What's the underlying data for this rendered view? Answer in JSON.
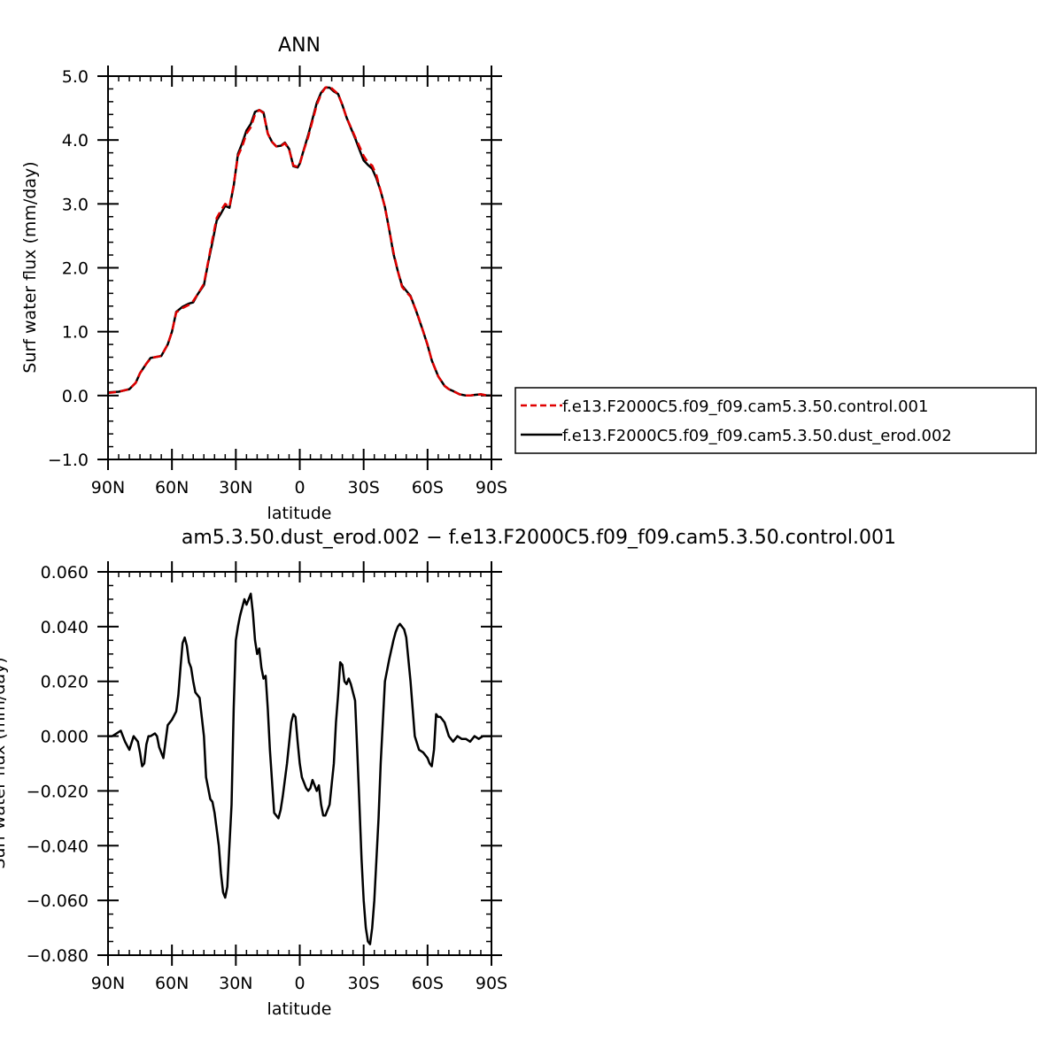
{
  "chart_data": [
    {
      "type": "line",
      "title": "ANN",
      "xlabel": "latitude",
      "ylabel": "Surf water flux (mm/day)",
      "xlim": [
        90,
        -90
      ],
      "ylim": [
        -1.0,
        5.0
      ],
      "xticks": [
        90,
        60,
        30,
        0,
        -30,
        -60,
        -90
      ],
      "xtick_labels": [
        "90N",
        "60N",
        "30N",
        "0",
        "30S",
        "60S",
        "90S"
      ],
      "yticks": [
        -1.0,
        0.0,
        1.0,
        2.0,
        3.0,
        4.0,
        5.0
      ],
      "ytick_labels": [
        "−1.0",
        "0.0",
        "1.0",
        "2.0",
        "3.0",
        "4.0",
        "5.0"
      ],
      "grid": false,
      "legend": "right",
      "series": [
        {
          "name": "f.e13.F2000C5.f09_f09.cam5.3.50.control.001",
          "color": "#e00000",
          "dash": true,
          "x": [
            90,
            85,
            80,
            77,
            75,
            72,
            70,
            68,
            65,
            62,
            60,
            58,
            55,
            52,
            50,
            48,
            45,
            43,
            41,
            39,
            37,
            35,
            33,
            31,
            29,
            27,
            25,
            23,
            21,
            19,
            17,
            15,
            13,
            11,
            9,
            7,
            5,
            3,
            1,
            0,
            -2,
            -4,
            -6,
            -8,
            -10,
            -12,
            -14,
            -16,
            -18,
            -20,
            -22,
            -24,
            -26,
            -28,
            -30,
            -32,
            -34,
            -36,
            -38,
            -40,
            -42,
            -44,
            -46,
            -48,
            -50,
            -52,
            -55,
            -58,
            -60,
            -62,
            -65,
            -68,
            -70,
            -72,
            -75,
            -78,
            -80,
            -82,
            -85,
            -88,
            -90
          ],
          "y": [
            0.04,
            0.06,
            0.1,
            0.2,
            0.35,
            0.5,
            0.58,
            0.6,
            0.62,
            0.8,
            1.0,
            1.3,
            1.37,
            1.42,
            1.48,
            1.58,
            1.75,
            2.1,
            2.45,
            2.78,
            2.9,
            3.0,
            2.95,
            3.3,
            3.75,
            3.9,
            4.1,
            4.2,
            4.4,
            4.47,
            4.42,
            4.1,
            3.97,
            3.9,
            3.9,
            3.95,
            3.85,
            3.6,
            3.58,
            3.62,
            3.85,
            4.05,
            4.3,
            4.55,
            4.72,
            4.82,
            4.84,
            4.78,
            4.72,
            4.55,
            4.35,
            4.2,
            4.05,
            3.9,
            3.75,
            3.65,
            3.6,
            3.45,
            3.2,
            2.95,
            2.6,
            2.25,
            1.95,
            1.7,
            1.62,
            1.55,
            1.3,
            1.0,
            0.8,
            0.55,
            0.3,
            0.15,
            0.1,
            0.07,
            0.02,
            0.0,
            0.0,
            0.01,
            0.02,
            0.0,
            0.0
          ]
        },
        {
          "name": "f.e13.F2000C5.f09_f09.cam5.3.50.dust_erod.002",
          "color": "#000000",
          "dash": false,
          "x": [
            90,
            85,
            80,
            77,
            75,
            72,
            70,
            68,
            65,
            62,
            60,
            58,
            55,
            52,
            50,
            48,
            45,
            43,
            41,
            39,
            37,
            35,
            33,
            31,
            29,
            27,
            25,
            23,
            21,
            19,
            17,
            15,
            13,
            11,
            9,
            7,
            5,
            3,
            1,
            0,
            -2,
            -4,
            -6,
            -8,
            -10,
            -12,
            -14,
            -16,
            -18,
            -20,
            -22,
            -24,
            -26,
            -28,
            -30,
            -32,
            -34,
            -36,
            -38,
            -40,
            -42,
            -44,
            -46,
            -48,
            -50,
            -52,
            -55,
            -58,
            -60,
            -62,
            -65,
            -68,
            -70,
            -72,
            -75,
            -78,
            -80,
            -82,
            -85,
            -88,
            -90
          ],
          "y": [
            0.05,
            0.06,
            0.1,
            0.2,
            0.35,
            0.5,
            0.59,
            0.6,
            0.62,
            0.8,
            1.0,
            1.31,
            1.39,
            1.44,
            1.46,
            1.58,
            1.73,
            2.08,
            2.4,
            2.74,
            2.85,
            2.97,
            2.94,
            3.28,
            3.78,
            3.95,
            4.15,
            4.25,
            4.44,
            4.47,
            4.43,
            4.1,
            3.97,
            3.9,
            3.91,
            3.96,
            3.86,
            3.59,
            3.57,
            3.63,
            3.86,
            4.08,
            4.33,
            4.58,
            4.74,
            4.82,
            4.82,
            4.76,
            4.72,
            4.55,
            4.35,
            4.19,
            4.03,
            3.85,
            3.68,
            3.61,
            3.55,
            3.4,
            3.2,
            2.95,
            2.6,
            2.22,
            1.95,
            1.72,
            1.64,
            1.56,
            1.29,
            1.0,
            0.79,
            0.55,
            0.3,
            0.15,
            0.1,
            0.07,
            0.02,
            0.0,
            0.0,
            0.01,
            0.02,
            0.0,
            0.0
          ]
        }
      ]
    },
    {
      "type": "line",
      "title": "am5.3.50.dust_erod.002 − f.e13.F2000C5.f09_f09.cam5.3.50.control.001",
      "xlabel": "latitude",
      "ylabel": "Surf water flux (mm/day)",
      "xlim": [
        90,
        -90
      ],
      "ylim": [
        -0.08,
        0.06
      ],
      "xticks": [
        90,
        60,
        30,
        0,
        -30,
        -60,
        -90
      ],
      "xtick_labels": [
        "90N",
        "60N",
        "30N",
        "0",
        "30S",
        "60S",
        "90S"
      ],
      "yticks": [
        -0.08,
        -0.06,
        -0.04,
        -0.02,
        0.0,
        0.02,
        0.04,
        0.06
      ],
      "ytick_labels": [
        "−0.080",
        "−0.060",
        "−0.040",
        "−0.020",
        "0.000",
        "0.020",
        "0.040",
        "0.060"
      ],
      "grid": false,
      "series": [
        {
          "color": "#000000",
          "x": [
            90,
            88,
            86,
            84,
            82,
            80,
            78,
            76,
            75,
            74,
            73,
            72,
            71,
            70,
            68,
            67,
            66,
            64,
            62,
            60,
            58,
            57,
            56,
            55,
            54,
            53,
            52,
            51,
            50,
            49,
            47,
            45,
            44,
            42,
            41,
            40,
            38,
            37,
            36,
            35,
            34,
            33,
            32,
            31,
            30,
            29,
            28,
            26,
            25,
            24,
            23,
            22,
            21,
            20,
            19,
            18,
            17,
            16,
            15,
            14,
            12,
            10,
            9,
            8,
            6,
            4,
            3,
            2,
            1,
            0,
            -1,
            -2,
            -3,
            -4,
            -5,
            -6,
            -7,
            -8,
            -9,
            -10,
            -11,
            -12,
            -14,
            -16,
            -17,
            -18,
            -19,
            -20,
            -21,
            -22,
            -23,
            -24,
            -26,
            -27,
            -28,
            -29,
            -30,
            -31,
            -32,
            -33,
            -34,
            -35,
            -36,
            -37,
            -38,
            -40,
            -42,
            -44,
            -45,
            -46,
            -47,
            -48,
            -49,
            -50,
            -51,
            -52,
            -54,
            -56,
            -58,
            -60,
            -61,
            -62,
            -63,
            -64,
            -65,
            -66,
            -68,
            -70,
            -72,
            -74,
            -76,
            -78,
            -80,
            -82,
            -84,
            -86,
            -88,
            -90
          ],
          "y": [
            0.0,
            0.0,
            0.001,
            0.002,
            -0.002,
            -0.005,
            0.0,
            -0.002,
            -0.006,
            -0.011,
            -0.01,
            -0.003,
            0.0,
            0.0,
            0.001,
            0.0,
            -0.004,
            -0.008,
            0.004,
            0.006,
            0.009,
            0.015,
            0.025,
            0.034,
            0.036,
            0.033,
            0.027,
            0.025,
            0.02,
            0.016,
            0.014,
            0.0,
            -0.015,
            -0.023,
            -0.024,
            -0.028,
            -0.04,
            -0.05,
            -0.057,
            -0.059,
            -0.055,
            -0.04,
            -0.025,
            0.01,
            0.035,
            0.04,
            0.044,
            0.05,
            0.048,
            0.05,
            0.052,
            0.045,
            0.035,
            0.03,
            0.032,
            0.025,
            0.021,
            0.022,
            0.01,
            -0.005,
            -0.028,
            -0.03,
            -0.027,
            -0.022,
            -0.01,
            0.005,
            0.008,
            0.007,
            -0.002,
            -0.01,
            -0.015,
            -0.017,
            -0.019,
            -0.02,
            -0.019,
            -0.016,
            -0.018,
            -0.02,
            -0.018,
            -0.025,
            -0.029,
            -0.029,
            -0.025,
            -0.01,
            0.005,
            0.015,
            0.027,
            0.026,
            0.02,
            0.019,
            0.021,
            0.019,
            0.013,
            -0.005,
            -0.025,
            -0.045,
            -0.06,
            -0.07,
            -0.075,
            -0.076,
            -0.07,
            -0.06,
            -0.045,
            -0.03,
            -0.01,
            0.02,
            0.028,
            0.035,
            0.038,
            0.04,
            0.041,
            0.04,
            0.039,
            0.036,
            0.028,
            0.02,
            0.0,
            -0.005,
            -0.006,
            -0.008,
            -0.01,
            -0.011,
            -0.005,
            0.008,
            0.007,
            0.007,
            0.005,
            0.0,
            -0.002,
            0.0,
            -0.001,
            -0.001,
            -0.002,
            0.0,
            -0.001,
            0.0,
            0.0,
            0.0
          ]
        }
      ]
    }
  ]
}
